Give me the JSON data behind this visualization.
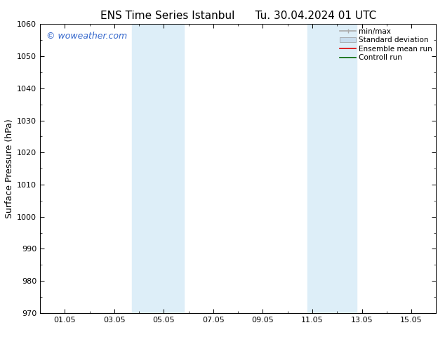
{
  "title": "ENS Time Series Istanbul      Tu. 30.04.2024 01 UTC",
  "ylabel": "Surface Pressure (hPa)",
  "ylim": [
    970,
    1060
  ],
  "yticks": [
    970,
    980,
    990,
    1000,
    1010,
    1020,
    1030,
    1040,
    1050,
    1060
  ],
  "xlim": [
    0,
    16
  ],
  "xtick_labels": [
    "01.05",
    "03.05",
    "05.05",
    "07.05",
    "09.05",
    "11.05",
    "13.05",
    "15.05"
  ],
  "xtick_positions": [
    1,
    3,
    5,
    7,
    9,
    11,
    13,
    15
  ],
  "shaded_bands": [
    {
      "x_start": 3.7,
      "x_end": 5.8
    },
    {
      "x_start": 10.8,
      "x_end": 12.8
    }
  ],
  "shaded_color": "#ddeef8",
  "background_color": "#ffffff",
  "watermark_text": "© woweather.com",
  "watermark_color": "#3366cc",
  "watermark_fontsize": 9,
  "title_fontsize": 11,
  "ylabel_fontsize": 9,
  "tick_fontsize": 8,
  "legend_fontsize": 7.5,
  "legend_items": [
    {
      "label": "min/max",
      "color": "#aaaaaa",
      "lw": 1.2
    },
    {
      "label": "Standard deviation",
      "color": "#c8dced",
      "lw": 5
    },
    {
      "label": "Ensemble mean run",
      "color": "#dd0000",
      "lw": 1.2
    },
    {
      "label": "Controll run",
      "color": "#006600",
      "lw": 1.2
    }
  ]
}
